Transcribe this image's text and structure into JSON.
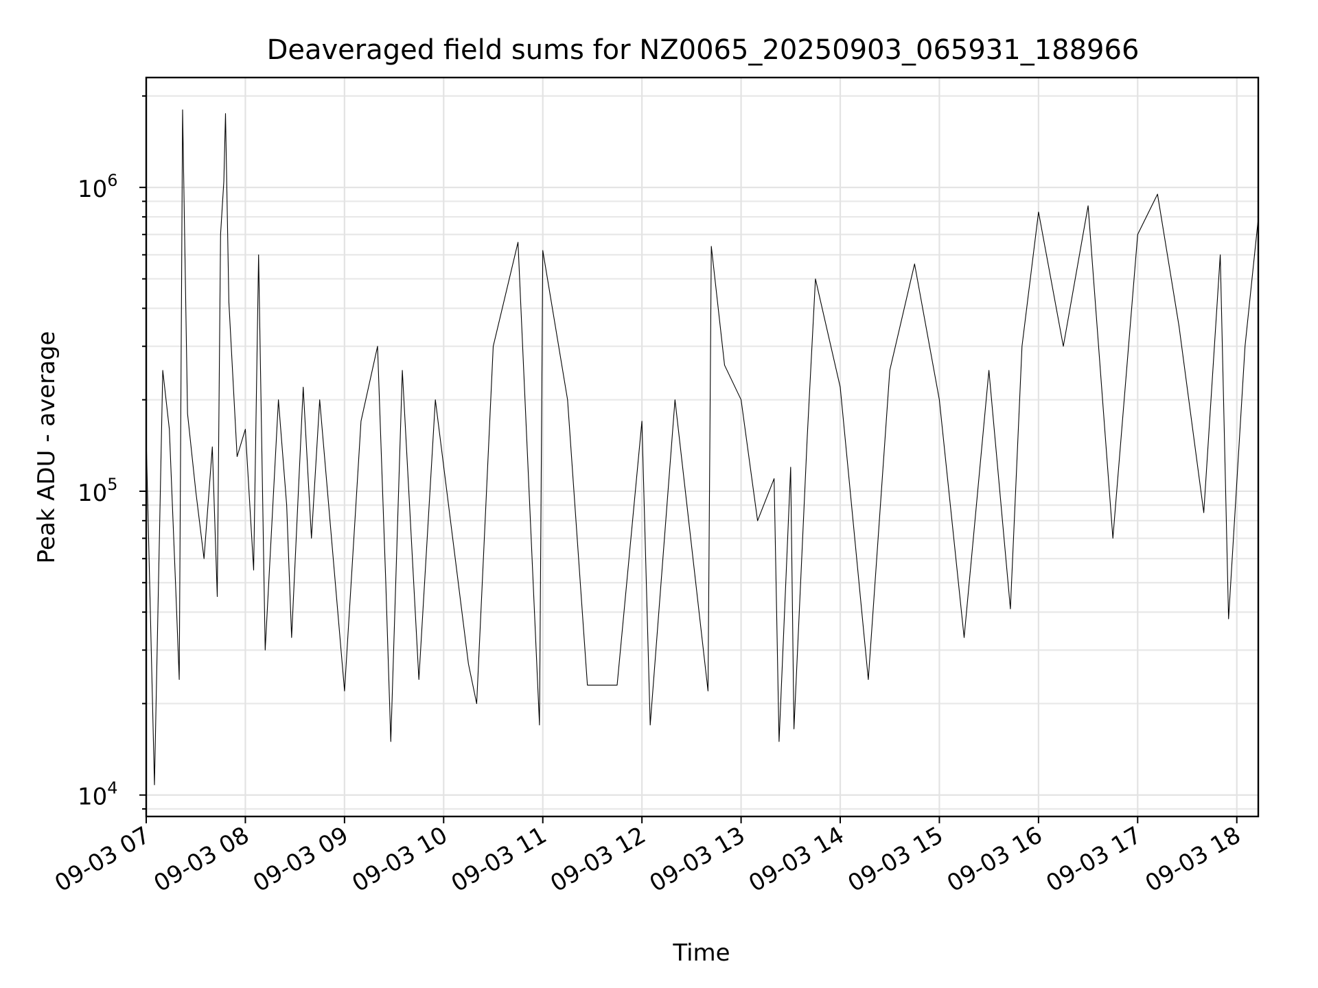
{
  "chart_data": {
    "type": "line",
    "title": "Deaveraged field sums for NZ0065_20250903_065931_188966",
    "xlabel": "Time",
    "ylabel": "Peak ADU - average",
    "yscale": "log",
    "ylim": [
      8500,
      2300000
    ],
    "xlim": [
      "2025-09-03 07:00",
      "2025-09-03 18:13"
    ],
    "grid": true,
    "legend": "none",
    "x_ticks": [
      {
        "t": "2025-09-03 07:00",
        "label": "09-03 07"
      },
      {
        "t": "2025-09-03 08:00",
        "label": "09-03 08"
      },
      {
        "t": "2025-09-03 09:00",
        "label": "09-03 09"
      },
      {
        "t": "2025-09-03 10:00",
        "label": "09-03 10"
      },
      {
        "t": "2025-09-03 11:00",
        "label": "09-03 11"
      },
      {
        "t": "2025-09-03 12:00",
        "label": "09-03 12"
      },
      {
        "t": "2025-09-03 13:00",
        "label": "09-03 13"
      },
      {
        "t": "2025-09-03 14:00",
        "label": "09-03 14"
      },
      {
        "t": "2025-09-03 15:00",
        "label": "09-03 15"
      },
      {
        "t": "2025-09-03 16:00",
        "label": "09-03 16"
      },
      {
        "t": "2025-09-03 17:00",
        "label": "09-03 17"
      },
      {
        "t": "2025-09-03 18:00",
        "label": "09-03 18"
      }
    ],
    "y_ticks": [
      {
        "value": 10000,
        "base": "10",
        "exp": "4"
      },
      {
        "value": 100000,
        "base": "10",
        "exp": "5"
      },
      {
        "value": 1000000,
        "base": "10",
        "exp": "6"
      }
    ],
    "series": [
      {
        "color": "#000000",
        "points": [
          [
            "2025-09-03 07:00",
            150000
          ],
          [
            "2025-09-03 07:05",
            10800
          ],
          [
            "2025-09-03 07:10",
            250000
          ],
          [
            "2025-09-03 07:14",
            160000
          ],
          [
            "2025-09-03 07:18",
            46000
          ],
          [
            "2025-09-03 07:20",
            24000
          ],
          [
            "2025-09-03 07:22",
            1800000
          ],
          [
            "2025-09-03 07:25",
            180000
          ],
          [
            "2025-09-03 07:30",
            100000
          ],
          [
            "2025-09-03 07:35",
            60000
          ],
          [
            "2025-09-03 07:40",
            140000
          ],
          [
            "2025-09-03 07:43",
            45000
          ],
          [
            "2025-09-03 07:45",
            700000
          ],
          [
            "2025-09-03 07:47",
            1050000
          ],
          [
            "2025-09-03 07:48",
            1750000
          ],
          [
            "2025-09-03 07:50",
            420000
          ],
          [
            "2025-09-03 07:55",
            130000
          ],
          [
            "2025-09-03 08:00",
            160000
          ],
          [
            "2025-09-03 08:05",
            55000
          ],
          [
            "2025-09-03 08:08",
            600000
          ],
          [
            "2025-09-03 08:12",
            30000
          ],
          [
            "2025-09-03 08:20",
            200000
          ],
          [
            "2025-09-03 08:25",
            90000
          ],
          [
            "2025-09-03 08:28",
            33000
          ],
          [
            "2025-09-03 08:35",
            220000
          ],
          [
            "2025-09-03 08:40",
            70000
          ],
          [
            "2025-09-03 08:45",
            200000
          ],
          [
            "2025-09-03 09:00",
            22000
          ],
          [
            "2025-09-03 09:10",
            170000
          ],
          [
            "2025-09-03 09:20",
            300000
          ],
          [
            "2025-09-03 09:25",
            50000
          ],
          [
            "2025-09-03 09:28",
            15000
          ],
          [
            "2025-09-03 09:35",
            250000
          ],
          [
            "2025-09-03 09:45",
            24000
          ],
          [
            "2025-09-03 09:55",
            200000
          ],
          [
            "2025-09-03 10:15",
            27000
          ],
          [
            "2025-09-03 10:20",
            20000
          ],
          [
            "2025-09-03 10:30",
            300000
          ],
          [
            "2025-09-03 10:45",
            660000
          ],
          [
            "2025-09-03 10:58",
            17000
          ],
          [
            "2025-09-03 11:00",
            620000
          ],
          [
            "2025-09-03 11:15",
            200000
          ],
          [
            "2025-09-03 11:27",
            23000
          ],
          [
            "2025-09-03 11:45",
            23000
          ],
          [
            "2025-09-03 12:00",
            170000
          ],
          [
            "2025-09-03 12:05",
            17000
          ],
          [
            "2025-09-03 12:20",
            200000
          ],
          [
            "2025-09-03 12:40",
            22000
          ],
          [
            "2025-09-03 12:42",
            640000
          ],
          [
            "2025-09-03 12:50",
            260000
          ],
          [
            "2025-09-03 13:00",
            200000
          ],
          [
            "2025-09-03 13:10",
            80000
          ],
          [
            "2025-09-03 13:20",
            110000
          ],
          [
            "2025-09-03 13:23",
            15000
          ],
          [
            "2025-09-03 13:30",
            120000
          ],
          [
            "2025-09-03 13:32",
            16500
          ],
          [
            "2025-09-03 13:40",
            150000
          ],
          [
            "2025-09-03 13:45",
            500000
          ],
          [
            "2025-09-03 14:00",
            220000
          ],
          [
            "2025-09-03 14:17",
            24000
          ],
          [
            "2025-09-03 14:30",
            250000
          ],
          [
            "2025-09-03 14:45",
            560000
          ],
          [
            "2025-09-03 15:00",
            200000
          ],
          [
            "2025-09-03 15:15",
            33000
          ],
          [
            "2025-09-03 15:30",
            250000
          ],
          [
            "2025-09-03 15:43",
            41000
          ],
          [
            "2025-09-03 15:50",
            300000
          ],
          [
            "2025-09-03 16:00",
            830000
          ],
          [
            "2025-09-03 16:15",
            300000
          ],
          [
            "2025-09-03 16:30",
            870000
          ],
          [
            "2025-09-03 16:45",
            70000
          ],
          [
            "2025-09-03 17:00",
            700000
          ],
          [
            "2025-09-03 17:12",
            950000
          ],
          [
            "2025-09-03 17:25",
            350000
          ],
          [
            "2025-09-03 17:40",
            85000
          ],
          [
            "2025-09-03 17:50",
            600000
          ],
          [
            "2025-09-03 17:55",
            38000
          ],
          [
            "2025-09-03 18:05",
            300000
          ],
          [
            "2025-09-03 18:13",
            790000
          ]
        ]
      }
    ]
  }
}
